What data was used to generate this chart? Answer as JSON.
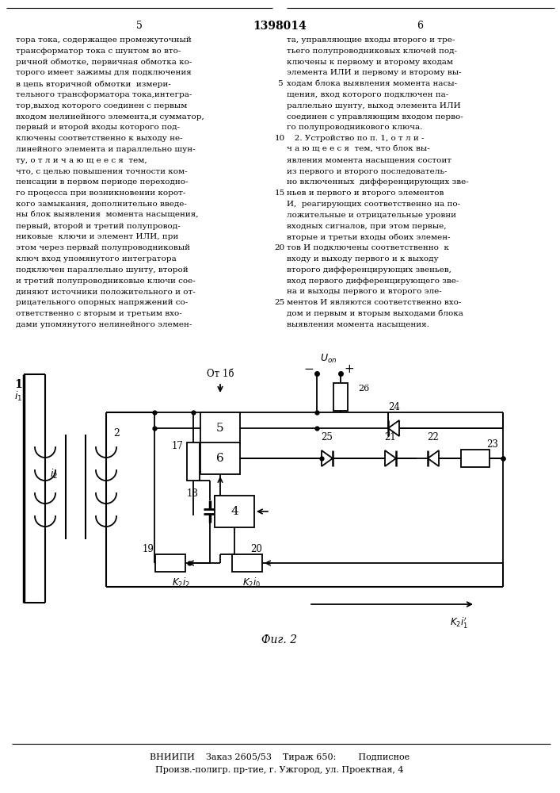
{
  "page_number_left": "5",
  "patent_number": "1398014",
  "page_number_right": "6",
  "col1_text": [
    "тора тока, содержащее промежуточный",
    "трансформатор тока с шунтом во вто-",
    "ричной обмотке, первичная обмотка ко-",
    "торого имеет зажимы для подключения",
    "в цепь вторичной обмотки  измери-",
    "тельного трансформатора тока,интегра-",
    "тор,выход которого соединен с первым",
    "входом нелинейного элемента,и сумматор,",
    "первый и второй входы которого под-",
    "ключены соответственно к выходу не-",
    "линейного элемента и параллельно шун-",
    "ту, о т л и ч а ю щ е е с я  тем,",
    "что, с целью повышения точности ком-",
    "пенсации в первом периоде переходно-",
    "го процесса при возникновении корот-",
    "кого замыкания, дополнительно введе-",
    "ны блок выявления  момента насыщения,",
    "первый, второй и третий полупровод-",
    "никовые  ключи и элемент ИЛИ, при",
    "этом через первый полупроводниковый",
    "ключ вход упомянутого интегратора",
    "подключен параллельно шунту, второй",
    "и третий полупроводниковые ключи сое-",
    "диняют источники положительного и от-",
    "рицательного опорных напряжений со-",
    "ответственно с вторым и третьим вхо-",
    "дами упомянутого нелинейного элемен-"
  ],
  "col2_line_nums": [
    "5",
    "10",
    "15",
    "20",
    "25"
  ],
  "col2_line_num_rows": [
    4,
    9,
    14,
    19,
    24
  ],
  "col2_text": [
    "та, управляющие входы второго и тре-",
    "тьего полупроводниковых ключей под-",
    "ключены к первому и второму входам",
    "элемента ИЛИ и первому и второму вы-",
    "ходам блока выявления момента насы-",
    "щения, вход которого подключен па-",
    "раллельно шунту, выход элемента ИЛИ",
    "соединен с управляющим входом перво-",
    "го полупроводникового ключа.",
    "   2. Устройство по п. 1, о т л и -",
    "ч а ю щ е е с я  тем, что блок вы-",
    "явления момента насыщения состоит",
    "из первого и второго последователь-",
    "но включенных  дифференцирующих зве-",
    "ньев и первого и второго элементов",
    "И,  реагирующих соответственно на по-",
    "ложительные и отрицательные уровни",
    "входных сигналов, при этом первые,",
    "вторые и третьи входы обоих элемен-",
    "тов И подключены соответственно  к",
    "входу и выходу первого и к выходу",
    "второго дифференцирующих звеньев,",
    "вход первого дифференцирующего зве-",
    "на и выходы первого и второго эле-",
    "ментов И являются соответственно вхо-",
    "дом и первым и вторым выходами блока",
    "выявления момента насыщения."
  ],
  "fig_label": "Фиг. 2",
  "footer_line1": "ВНИИПИ    Заказ 2605/53    Тираж 650:        Подписное",
  "footer_line2": "Произв.-полигр. пр-тие, г. Ужгород, ул. Проектная, 4",
  "bg_color": "#ffffff",
  "text_color": "#000000",
  "line_color": "#000000"
}
